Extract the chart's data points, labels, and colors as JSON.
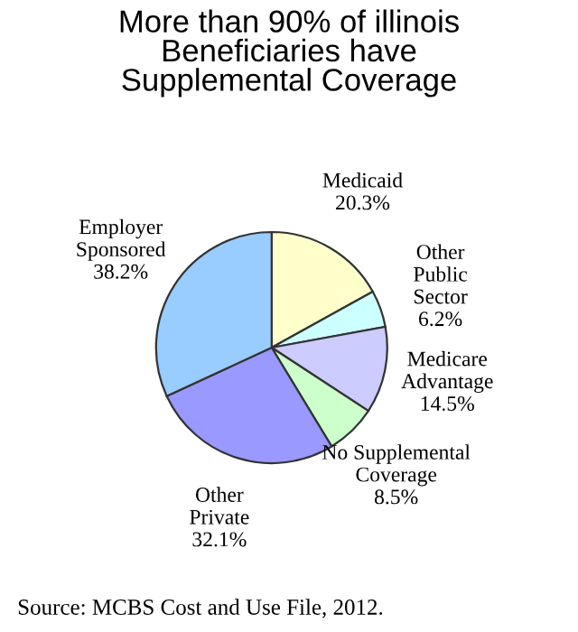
{
  "chart_data": {
    "type": "pie",
    "title": "More than 90% of illinois\nBeneficiaries have\nSupplemental Coverage",
    "categories": [
      "Medicaid",
      "Other\nPublic\nSector",
      "Medicare\nAdvantage",
      "No Supplemental\nCoverage",
      "Other\nPrivate",
      "Employer\nSponsored"
    ],
    "values": [
      20.3,
      6.2,
      14.5,
      8.5,
      32.1,
      38.2
    ],
    "value_labels": [
      "20.3%",
      "6.2%",
      "14.5%",
      "8.5%",
      "32.1%",
      "38.2%"
    ],
    "colors": [
      "#ffffcc",
      "#ccffff",
      "#ccccff",
      "#ccffcc",
      "#9999ff",
      "#99ccff"
    ],
    "annotations": [
      "Source: MCBS Cost and Use File, 2012."
    ]
  }
}
